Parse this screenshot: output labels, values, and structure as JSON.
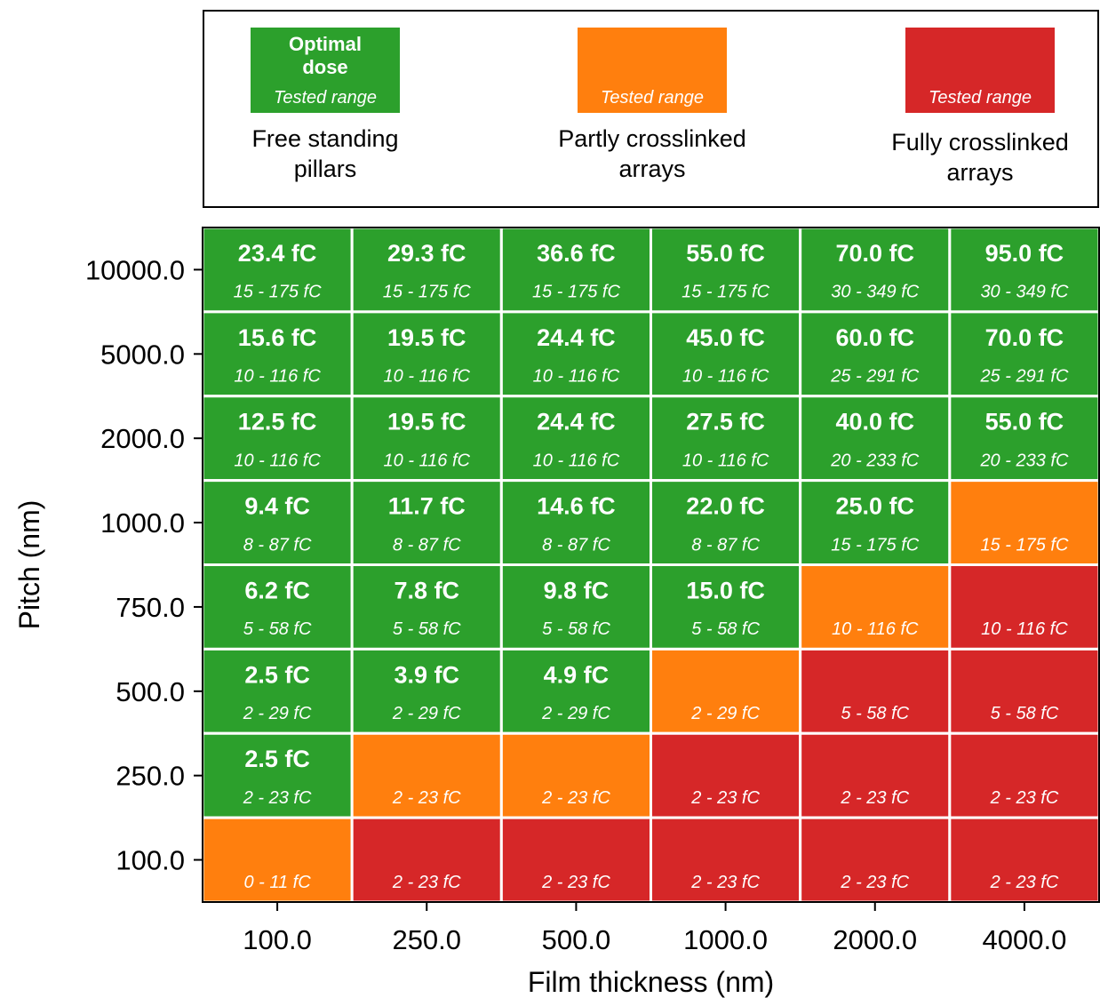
{
  "legend": {
    "items": [
      {
        "swatch_title": "Optimal dose",
        "swatch_sub": "Tested range",
        "label": "Free standing pillars",
        "color": "#2ca02c"
      },
      {
        "swatch_title": "",
        "swatch_sub": "Tested range",
        "label": "Partly crosslinked arrays",
        "color": "#ff7f0e"
      },
      {
        "swatch_title": "",
        "swatch_sub": "Tested range",
        "label": "Fully crosslinked arrays",
        "color": "#d62728"
      }
    ]
  },
  "chart_data": {
    "type": "heatmap",
    "xlabel": "Film thickness (nm)",
    "ylabel": "Pitch (nm)",
    "x_categories": [
      "100.0",
      "250.0",
      "500.0",
      "1000.0",
      "2000.0",
      "4000.0"
    ],
    "y_categories": [
      "10000.0",
      "5000.0",
      "2000.0",
      "1000.0",
      "750.0",
      "500.0",
      "250.0",
      "100.0"
    ],
    "colors": {
      "free": "#2ca02c",
      "partly": "#ff7f0e",
      "fully": "#d62728"
    },
    "cells": [
      [
        {
          "state": "free",
          "dose": "23.4 fC",
          "range": "15 - 175 fC"
        },
        {
          "state": "free",
          "dose": "29.3 fC",
          "range": "15 - 175 fC"
        },
        {
          "state": "free",
          "dose": "36.6 fC",
          "range": "15 - 175 fC"
        },
        {
          "state": "free",
          "dose": "55.0 fC",
          "range": "15 - 175 fC"
        },
        {
          "state": "free",
          "dose": "70.0 fC",
          "range": "30 - 349 fC"
        },
        {
          "state": "free",
          "dose": "95.0 fC",
          "range": "30 - 349 fC"
        }
      ],
      [
        {
          "state": "free",
          "dose": "15.6 fC",
          "range": "10 - 116 fC"
        },
        {
          "state": "free",
          "dose": "19.5 fC",
          "range": "10 - 116 fC"
        },
        {
          "state": "free",
          "dose": "24.4 fC",
          "range": "10 - 116 fC"
        },
        {
          "state": "free",
          "dose": "45.0 fC",
          "range": "10 - 116 fC"
        },
        {
          "state": "free",
          "dose": "60.0 fC",
          "range": "25 - 291 fC"
        },
        {
          "state": "free",
          "dose": "70.0 fC",
          "range": "25 - 291 fC"
        }
      ],
      [
        {
          "state": "free",
          "dose": "12.5 fC",
          "range": "10 - 116 fC"
        },
        {
          "state": "free",
          "dose": "19.5 fC",
          "range": "10 - 116 fC"
        },
        {
          "state": "free",
          "dose": "24.4 fC",
          "range": "10 - 116 fC"
        },
        {
          "state": "free",
          "dose": "27.5 fC",
          "range": "10 - 116 fC"
        },
        {
          "state": "free",
          "dose": "40.0 fC",
          "range": "20 - 233 fC"
        },
        {
          "state": "free",
          "dose": "55.0 fC",
          "range": "20 - 233 fC"
        }
      ],
      [
        {
          "state": "free",
          "dose": "9.4 fC",
          "range": "8 - 87 fC"
        },
        {
          "state": "free",
          "dose": "11.7 fC",
          "range": "8 - 87 fC"
        },
        {
          "state": "free",
          "dose": "14.6 fC",
          "range": "8 - 87 fC"
        },
        {
          "state": "free",
          "dose": "22.0 fC",
          "range": "8 - 87 fC"
        },
        {
          "state": "free",
          "dose": "25.0 fC",
          "range": "15 - 175 fC"
        },
        {
          "state": "partly",
          "dose": "",
          "range": "15 - 175 fC"
        }
      ],
      [
        {
          "state": "free",
          "dose": "6.2 fC",
          "range": "5 - 58 fC"
        },
        {
          "state": "free",
          "dose": "7.8 fC",
          "range": "5 - 58 fC"
        },
        {
          "state": "free",
          "dose": "9.8 fC",
          "range": "5 - 58 fC"
        },
        {
          "state": "free",
          "dose": "15.0 fC",
          "range": "5 - 58 fC"
        },
        {
          "state": "partly",
          "dose": "",
          "range": "10 - 116 fC"
        },
        {
          "state": "fully",
          "dose": "",
          "range": "10 - 116 fC"
        }
      ],
      [
        {
          "state": "free",
          "dose": "2.5 fC",
          "range": "2 - 29 fC"
        },
        {
          "state": "free",
          "dose": "3.9 fC",
          "range": "2 - 29 fC"
        },
        {
          "state": "free",
          "dose": "4.9 fC",
          "range": "2 - 29 fC"
        },
        {
          "state": "partly",
          "dose": "",
          "range": "2 - 29 fC"
        },
        {
          "state": "fully",
          "dose": "",
          "range": "5 - 58 fC"
        },
        {
          "state": "fully",
          "dose": "",
          "range": "5 - 58 fC"
        }
      ],
      [
        {
          "state": "free",
          "dose": "2.5 fC",
          "range": "2 - 23 fC"
        },
        {
          "state": "partly",
          "dose": "",
          "range": "2 - 23 fC"
        },
        {
          "state": "partly",
          "dose": "",
          "range": "2 - 23 fC"
        },
        {
          "state": "fully",
          "dose": "",
          "range": "2 - 23 fC"
        },
        {
          "state": "fully",
          "dose": "",
          "range": "2 - 23 fC"
        },
        {
          "state": "fully",
          "dose": "",
          "range": "2 - 23 fC"
        }
      ],
      [
        {
          "state": "partly",
          "dose": "",
          "range": "0 - 11 fC"
        },
        {
          "state": "fully",
          "dose": "",
          "range": "2 - 23 fC"
        },
        {
          "state": "fully",
          "dose": "",
          "range": "2 - 23 fC"
        },
        {
          "state": "fully",
          "dose": "",
          "range": "2 - 23 fC"
        },
        {
          "state": "fully",
          "dose": "",
          "range": "2 - 23 fC"
        },
        {
          "state": "fully",
          "dose": "",
          "range": "2 - 23 fC"
        }
      ]
    ]
  }
}
